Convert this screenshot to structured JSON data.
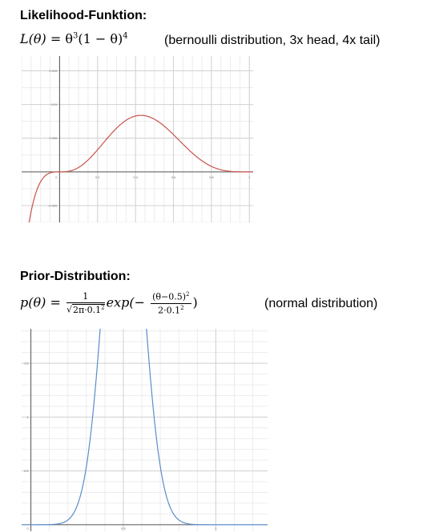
{
  "section1": {
    "title": "Likelihood-Funktion:",
    "formula_lhs": "L(θ)",
    "formula_eq": " = ",
    "formula_rhs_base1": "θ",
    "formula_rhs_exp1": "3",
    "formula_rhs_mid": "(1 − θ)",
    "formula_rhs_exp2": "4",
    "note": "(bernoulli distribution, 3x head, 4x tail)"
  },
  "section2": {
    "title": "Prior-Distribution:",
    "formula_lhs": "p(θ)",
    "formula_eq": " = ",
    "frac1_num": "1",
    "frac1_den_prefix": "√",
    "frac1_den": "2π·0.1",
    "frac1_den_exp": "2",
    "exp_prefix": "exp(−",
    "frac2_num": "(θ−0.5)",
    "frac2_num_exp": "2",
    "frac2_den": "2·0.1",
    "frac2_den_exp": "2",
    "exp_suffix": ")",
    "note": "(normal distribution)"
  },
  "chart_data": [
    {
      "type": "line",
      "title": "",
      "xlabel": "",
      "ylabel": "",
      "xlim": [
        -0.2,
        1.02
      ],
      "ylim": [
        -0.0075,
        0.0172
      ],
      "x_ticks": [
        0,
        0.2,
        0.4,
        0.6,
        0.8,
        1
      ],
      "x_tick_labels": [
        "0",
        "0.2",
        "0.4",
        "0.6",
        "0.8",
        "1"
      ],
      "y_ticks": [
        -0.005,
        0.005,
        0.01,
        0.015
      ],
      "y_tick_labels": [
        "-0.005",
        "0.005",
        "0.01",
        "0.015"
      ],
      "grid": true,
      "function": "theta^3 * (1 - theta)^4",
      "line_color": "#c8544c"
    },
    {
      "type": "line",
      "title": "",
      "xlabel": "",
      "ylabel": "",
      "xlim": [
        -0.05,
        1.28
      ],
      "ylim": [
        -0.06,
        1.82
      ],
      "x_ticks": [
        0,
        0.5,
        1
      ],
      "x_tick_labels": [
        "0",
        "0.5",
        "1"
      ],
      "y_ticks": [
        0.5,
        1,
        1.5
      ],
      "y_tick_labels": [
        "0.5",
        "1",
        "1.5"
      ],
      "grid": true,
      "function": "1/sqrt(2*pi*0.1^2) * exp(-(theta-0.5)^2/(2*0.1^2))",
      "line_color": "#5b8ccc"
    }
  ]
}
